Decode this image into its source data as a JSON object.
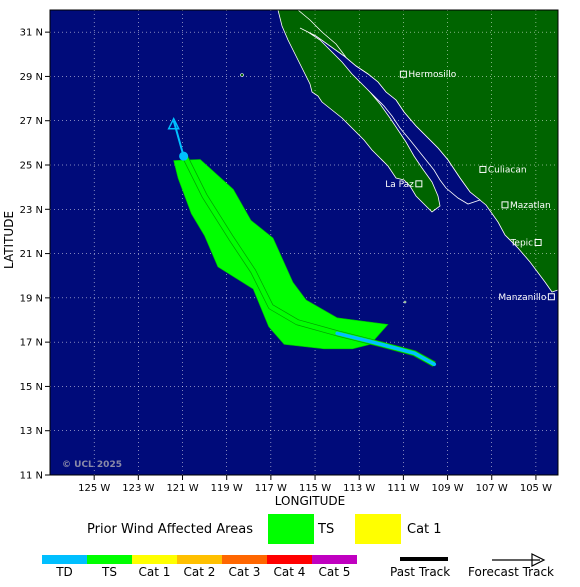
{
  "map": {
    "x_label": "LONGITUDE",
    "y_label": "LATITUDE",
    "credit": "© UCL 2025",
    "lon_ticks": [
      "125 W",
      "123 W",
      "121 W",
      "119 W",
      "117 W",
      "115 W",
      "113 W",
      "111 W",
      "109 W",
      "107 W",
      "105 W"
    ],
    "lat_ticks": [
      "31 N",
      "29 N",
      "27 N",
      "25 N",
      "23 N",
      "21 N",
      "19 N",
      "17 N",
      "15 N",
      "13 N",
      "11 N"
    ],
    "cities": [
      {
        "name": "Hermosillo",
        "lon": -111.0,
        "lat": 29.1,
        "label_side": "right"
      },
      {
        "name": "La Paz",
        "lon": -110.3,
        "lat": 24.15,
        "label_side": "left"
      },
      {
        "name": "Culiacan",
        "lon": -107.4,
        "lat": 24.8,
        "label_side": "right"
      },
      {
        "name": "Mazatlan",
        "lon": -106.4,
        "lat": 23.2,
        "label_side": "right"
      },
      {
        "name": "Tepic",
        "lon": -104.9,
        "lat": 21.5,
        "label_side": "left"
      },
      {
        "name": "Manzanillo",
        "lon": -104.3,
        "lat": 19.05,
        "label_side": "left"
      }
    ],
    "colors": {
      "ocean": "#000b7a",
      "land": "#006400",
      "tropical_storm": "#00ff00",
      "tropical_depression": "#00bfff",
      "cat1": "#ffff00"
    }
  },
  "storm": {
    "past_track_category": "TD",
    "past_track": [
      [
        -109.6,
        16.0
      ],
      [
        -110.5,
        16.5
      ],
      [
        -112.0,
        16.9
      ],
      [
        -114.0,
        17.4
      ],
      [
        -115.8,
        17.9
      ],
      [
        -117.0,
        18.6
      ],
      [
        -117.8,
        20.2
      ],
      [
        -118.8,
        21.7
      ],
      [
        -120.0,
        23.6
      ],
      [
        -120.9,
        25.4
      ]
    ],
    "current_position": [
      -120.95,
      25.4
    ],
    "forecast_track": [
      [
        -120.95,
        25.4
      ],
      [
        -121.4,
        27.0
      ]
    ],
    "ts_wind_area": [
      [
        -121.4,
        25.2
      ],
      [
        -120.2,
        25.25
      ],
      [
        -118.7,
        23.9
      ],
      [
        -117.9,
        22.5
      ],
      [
        -116.9,
        21.7
      ],
      [
        -116.0,
        19.7
      ],
      [
        -115.4,
        18.9
      ],
      [
        -114.0,
        18.1
      ],
      [
        -111.7,
        17.8
      ],
      [
        -112.5,
        16.9
      ],
      [
        -113.3,
        16.7
      ],
      [
        -114.6,
        16.7
      ],
      [
        -116.4,
        16.9
      ],
      [
        -117.1,
        17.7
      ],
      [
        -117.8,
        19.4
      ],
      [
        -119.4,
        20.4
      ],
      [
        -120.0,
        21.8
      ],
      [
        -120.6,
        22.8
      ],
      [
        -121.2,
        24.4
      ],
      [
        -121.4,
        25.2
      ]
    ]
  },
  "legend": {
    "prior_wind_label": "Prior Wind Affected Areas",
    "ts_label": "TS",
    "cat1_label": "Cat 1",
    "scale": [
      {
        "label": "TD",
        "color": "#00bfff"
      },
      {
        "label": "TS",
        "color": "#00ff00"
      },
      {
        "label": "Cat 1",
        "color": "#ffff00"
      },
      {
        "label": "Cat 2",
        "color": "#ffc000"
      },
      {
        "label": "Cat 3",
        "color": "#ff6600"
      },
      {
        "label": "Cat 4",
        "color": "#ff0000"
      },
      {
        "label": "Cat 5",
        "color": "#c000c0"
      }
    ],
    "past_track_label": "Past Track",
    "forecast_track_label": "Forecast Track"
  }
}
